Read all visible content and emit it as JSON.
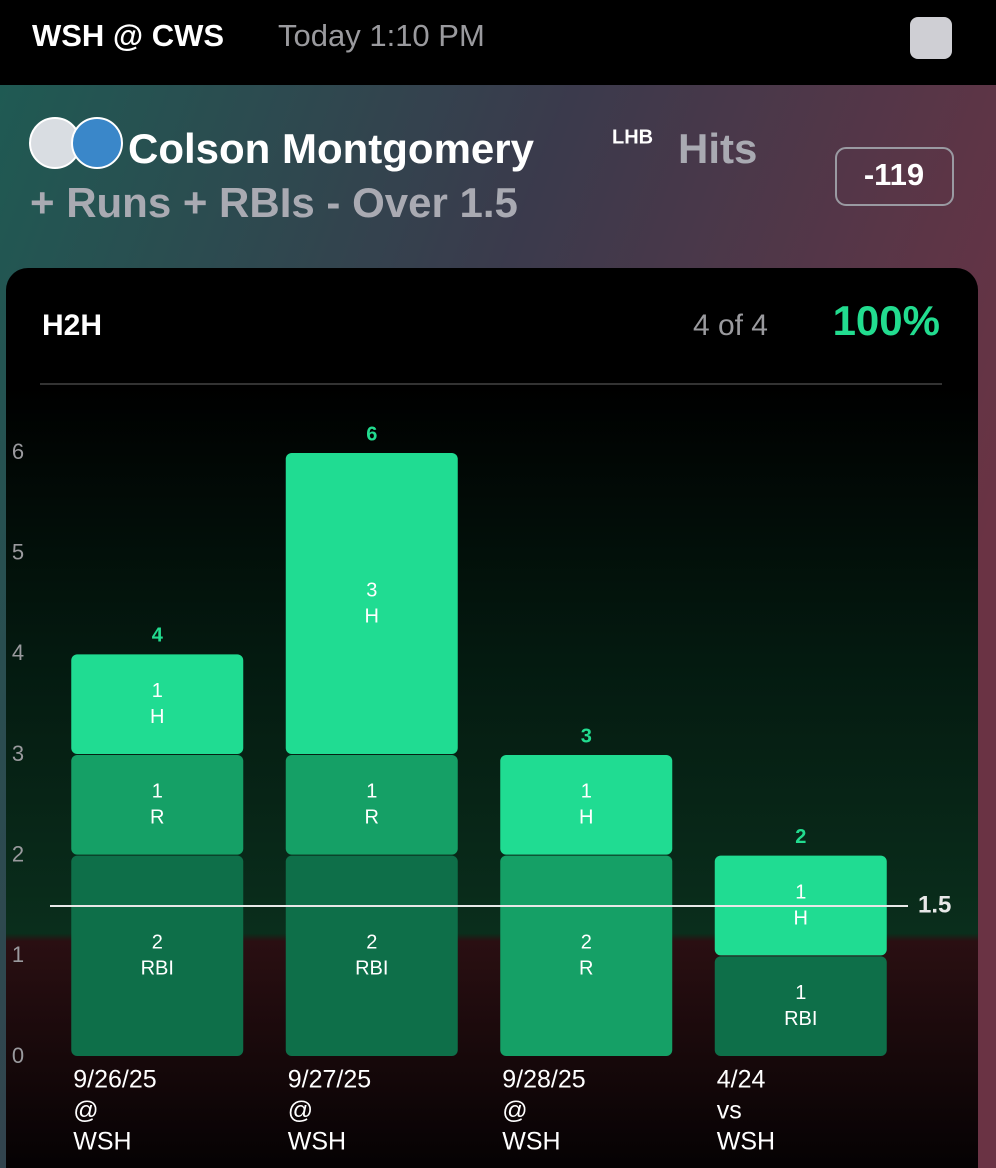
{
  "header": {
    "matchup": "WSH @ CWS",
    "time": "Today 1:10 PM"
  },
  "prop": {
    "player": "Colson Montgomery",
    "hand": "LHB",
    "market": [
      "Hits",
      "+ Runs + RBIs - Over 1.5"
    ],
    "odds": "-119"
  },
  "card": {
    "title": "H2H",
    "record": "4 of 4",
    "percent": "100%"
  },
  "chart_data": {
    "type": "bar",
    "stacked": true,
    "categories": [
      [
        "9/26/25",
        "@",
        "WSH"
      ],
      [
        "9/27/25",
        "@",
        "WSH"
      ],
      [
        "9/28/25",
        "@",
        "WSH"
      ],
      [
        "4/24",
        "vs",
        "WSH"
      ]
    ],
    "series": [
      {
        "name": "RBI",
        "color": "#0e6f49",
        "values": [
          2,
          2,
          null,
          1
        ]
      },
      {
        "name": "R",
        "color": "#15a066",
        "values": [
          1,
          1,
          2,
          null
        ]
      },
      {
        "name": "H",
        "color": "#20dc92",
        "values": [
          1,
          3,
          1,
          1
        ]
      }
    ],
    "totals": [
      4,
      6,
      3,
      2
    ],
    "threshold": 1.5,
    "ylim": [
      0,
      6
    ],
    "yticks": [
      0,
      1,
      2,
      3,
      4,
      5,
      6
    ],
    "grid": false
  }
}
